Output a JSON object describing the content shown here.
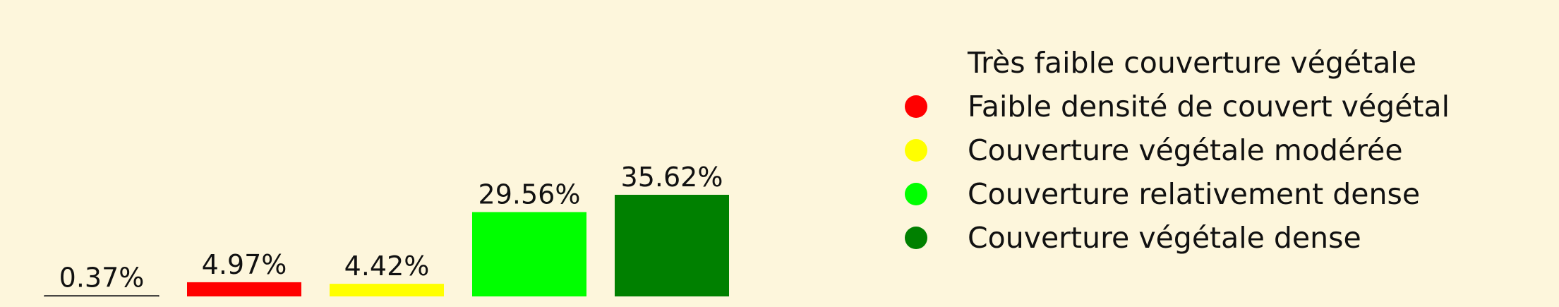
{
  "chart_data": {
    "type": "bar",
    "categories": [
      "Très faible couverture végétale",
      "Faible densité de couvert végétal",
      "Couverture végétale modérée",
      "Couverture relativement dense",
      "Couverture végétale dense"
    ],
    "values": [
      0.37,
      4.97,
      4.42,
      29.56,
      35.62
    ],
    "labels": [
      "0.37%",
      "4.97%",
      "4.42%",
      "29.56%",
      "35.62%"
    ],
    "colors": [
      "#fdf6dc",
      "#ff0000",
      "#ffff00",
      "#00ff00",
      "#008000"
    ],
    "title": "",
    "xlabel": "",
    "ylabel": "",
    "ylim": [
      0,
      36
    ],
    "legend_position": "right",
    "grid": false
  }
}
